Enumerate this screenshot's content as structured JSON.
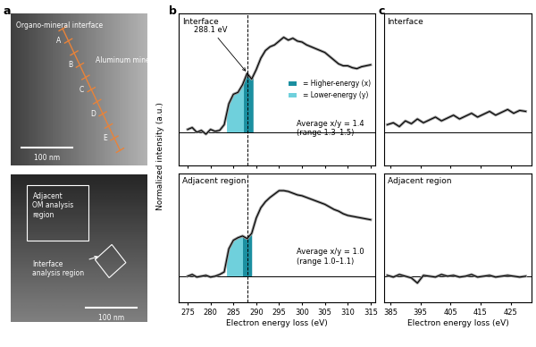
{
  "panel_labels": [
    "a",
    "b",
    "c"
  ],
  "images": [
    {
      "texts": [
        "Organo-mineral interface",
        "Aluminum mineral"
      ],
      "points": [
        "A",
        "B",
        "C",
        "D",
        "E"
      ],
      "scale_bar": "100 nm"
    },
    {
      "texts": [
        "Adjacent\nOM analysis\nregion",
        "Interface\nanalysis region"
      ],
      "scale_bar": "100 nm"
    }
  ],
  "shared_y_label": "Normalized intensity (a.u.)",
  "chart_data": [
    {
      "type": "line",
      "panel": "b",
      "title": "Interface",
      "x": [
        275,
        276,
        277,
        278,
        279,
        280,
        281,
        282,
        283,
        284,
        285,
        286,
        287,
        288,
        289,
        290,
        291,
        292,
        293,
        294,
        295,
        296,
        297,
        298,
        299,
        300,
        301,
        302,
        303,
        304,
        305,
        306,
        307,
        308,
        309,
        310,
        311,
        312,
        313,
        314,
        315
      ],
      "values": [
        0.03,
        0.05,
        0.0,
        0.02,
        -0.02,
        0.03,
        0.01,
        0.02,
        0.08,
        0.3,
        0.4,
        0.42,
        0.5,
        0.62,
        0.56,
        0.66,
        0.78,
        0.86,
        0.9,
        0.92,
        0.96,
        1.0,
        0.97,
        0.99,
        0.96,
        0.95,
        0.92,
        0.9,
        0.88,
        0.86,
        0.84,
        0.8,
        0.76,
        0.72,
        0.7,
        0.7,
        0.68,
        0.67,
        0.69,
        0.7,
        0.71
      ],
      "color": "#000000",
      "xlim": [
        273,
        316
      ],
      "xticks": [
        275,
        280,
        285,
        290,
        295,
        300,
        305,
        310,
        315
      ],
      "ylim": [
        -0.35,
        1.25
      ],
      "yticks": [],
      "tick_labels": false,
      "vline": 288.1,
      "annotation": {
        "text": "288.1 eV",
        "x": 288.1,
        "y": 0.62
      },
      "shading": [
        {
          "name": "= Higher-energy (x)",
          "color": "#1b8fa0",
          "range": [
            287.2,
            289.3
          ]
        },
        {
          "name": "= Lower-energy (y)",
          "color": "#6fd0dc",
          "range": [
            283.5,
            287.2
          ]
        }
      ],
      "legend": "center right",
      "text": [
        "Average x/y = 1.4",
        "(range 1.3–1.5)"
      ]
    },
    {
      "type": "line",
      "panel": "b",
      "title": "Adjacent region",
      "x": [
        275,
        276,
        277,
        278,
        279,
        280,
        281,
        282,
        283,
        284,
        285,
        286,
        287,
        288,
        289,
        290,
        291,
        292,
        293,
        294,
        295,
        296,
        297,
        298,
        299,
        300,
        301,
        302,
        303,
        304,
        305,
        306,
        307,
        308,
        309,
        310,
        311,
        312,
        313,
        314,
        315
      ],
      "values": [
        0.0,
        0.02,
        -0.01,
        0.0,
        0.01,
        -0.01,
        0.0,
        0.02,
        0.05,
        0.32,
        0.42,
        0.45,
        0.47,
        0.44,
        0.5,
        0.68,
        0.8,
        0.87,
        0.92,
        0.96,
        1.0,
        1.0,
        0.99,
        0.97,
        0.95,
        0.94,
        0.92,
        0.9,
        0.88,
        0.86,
        0.84,
        0.81,
        0.78,
        0.76,
        0.73,
        0.71,
        0.7,
        0.69,
        0.68,
        0.67,
        0.66
      ],
      "color": "#000000",
      "xlim": [
        273,
        316
      ],
      "xticks": [
        275,
        280,
        285,
        290,
        295,
        300,
        305,
        310,
        315
      ],
      "ylim": [
        -0.3,
        1.2
      ],
      "yticks": [],
      "tick_labels": "x",
      "vline": 288.1,
      "shading": [
        {
          "color": "#1b8fa0",
          "range": [
            287.0,
            289.0
          ]
        },
        {
          "color": "#6fd0dc",
          "range": [
            283.5,
            287.0
          ]
        }
      ],
      "text": [
        "Average x/y = 1.0",
        "(range 1.0–1.1)"
      ],
      "x_label": "Electron energy loss (eV)"
    },
    {
      "type": "line",
      "panel": "c",
      "title": "Interface",
      "x": [
        384,
        386,
        388,
        390,
        392,
        394,
        396,
        398,
        400,
        402,
        404,
        406,
        408,
        410,
        412,
        414,
        416,
        418,
        420,
        422,
        424,
        426,
        428,
        430
      ],
      "values": [
        0.08,
        0.1,
        0.06,
        0.12,
        0.09,
        0.14,
        0.1,
        0.13,
        0.16,
        0.12,
        0.15,
        0.18,
        0.14,
        0.17,
        0.2,
        0.16,
        0.19,
        0.22,
        0.18,
        0.21,
        0.24,
        0.2,
        0.23,
        0.22
      ],
      "color": "#000000",
      "xlim": [
        383,
        432
      ],
      "xticks": [
        385,
        395,
        405,
        415,
        425
      ],
      "ylim": [
        -0.35,
        1.25
      ],
      "yticks": [],
      "tick_labels": false
    },
    {
      "type": "line",
      "panel": "c",
      "title": "Adjacent region",
      "x": [
        384,
        386,
        388,
        390,
        392,
        394,
        396,
        398,
        400,
        402,
        404,
        406,
        408,
        410,
        412,
        414,
        416,
        418,
        420,
        422,
        424,
        426,
        428,
        430
      ],
      "values": [
        0.01,
        -0.01,
        0.02,
        0.0,
        -0.02,
        -0.08,
        0.01,
        0.0,
        -0.01,
        0.02,
        0.0,
        0.01,
        -0.01,
        0.0,
        0.02,
        -0.01,
        0.0,
        0.01,
        -0.01,
        0.0,
        0.01,
        0.0,
        -0.01,
        0.0
      ],
      "color": "#000000",
      "xlim": [
        383,
        432
      ],
      "xticks": [
        385,
        395,
        405,
        415,
        425
      ],
      "ylim": [
        -0.3,
        1.2
      ],
      "yticks": [],
      "tick_labels": "x",
      "x_label": "Electron energy loss (eV)"
    }
  ]
}
